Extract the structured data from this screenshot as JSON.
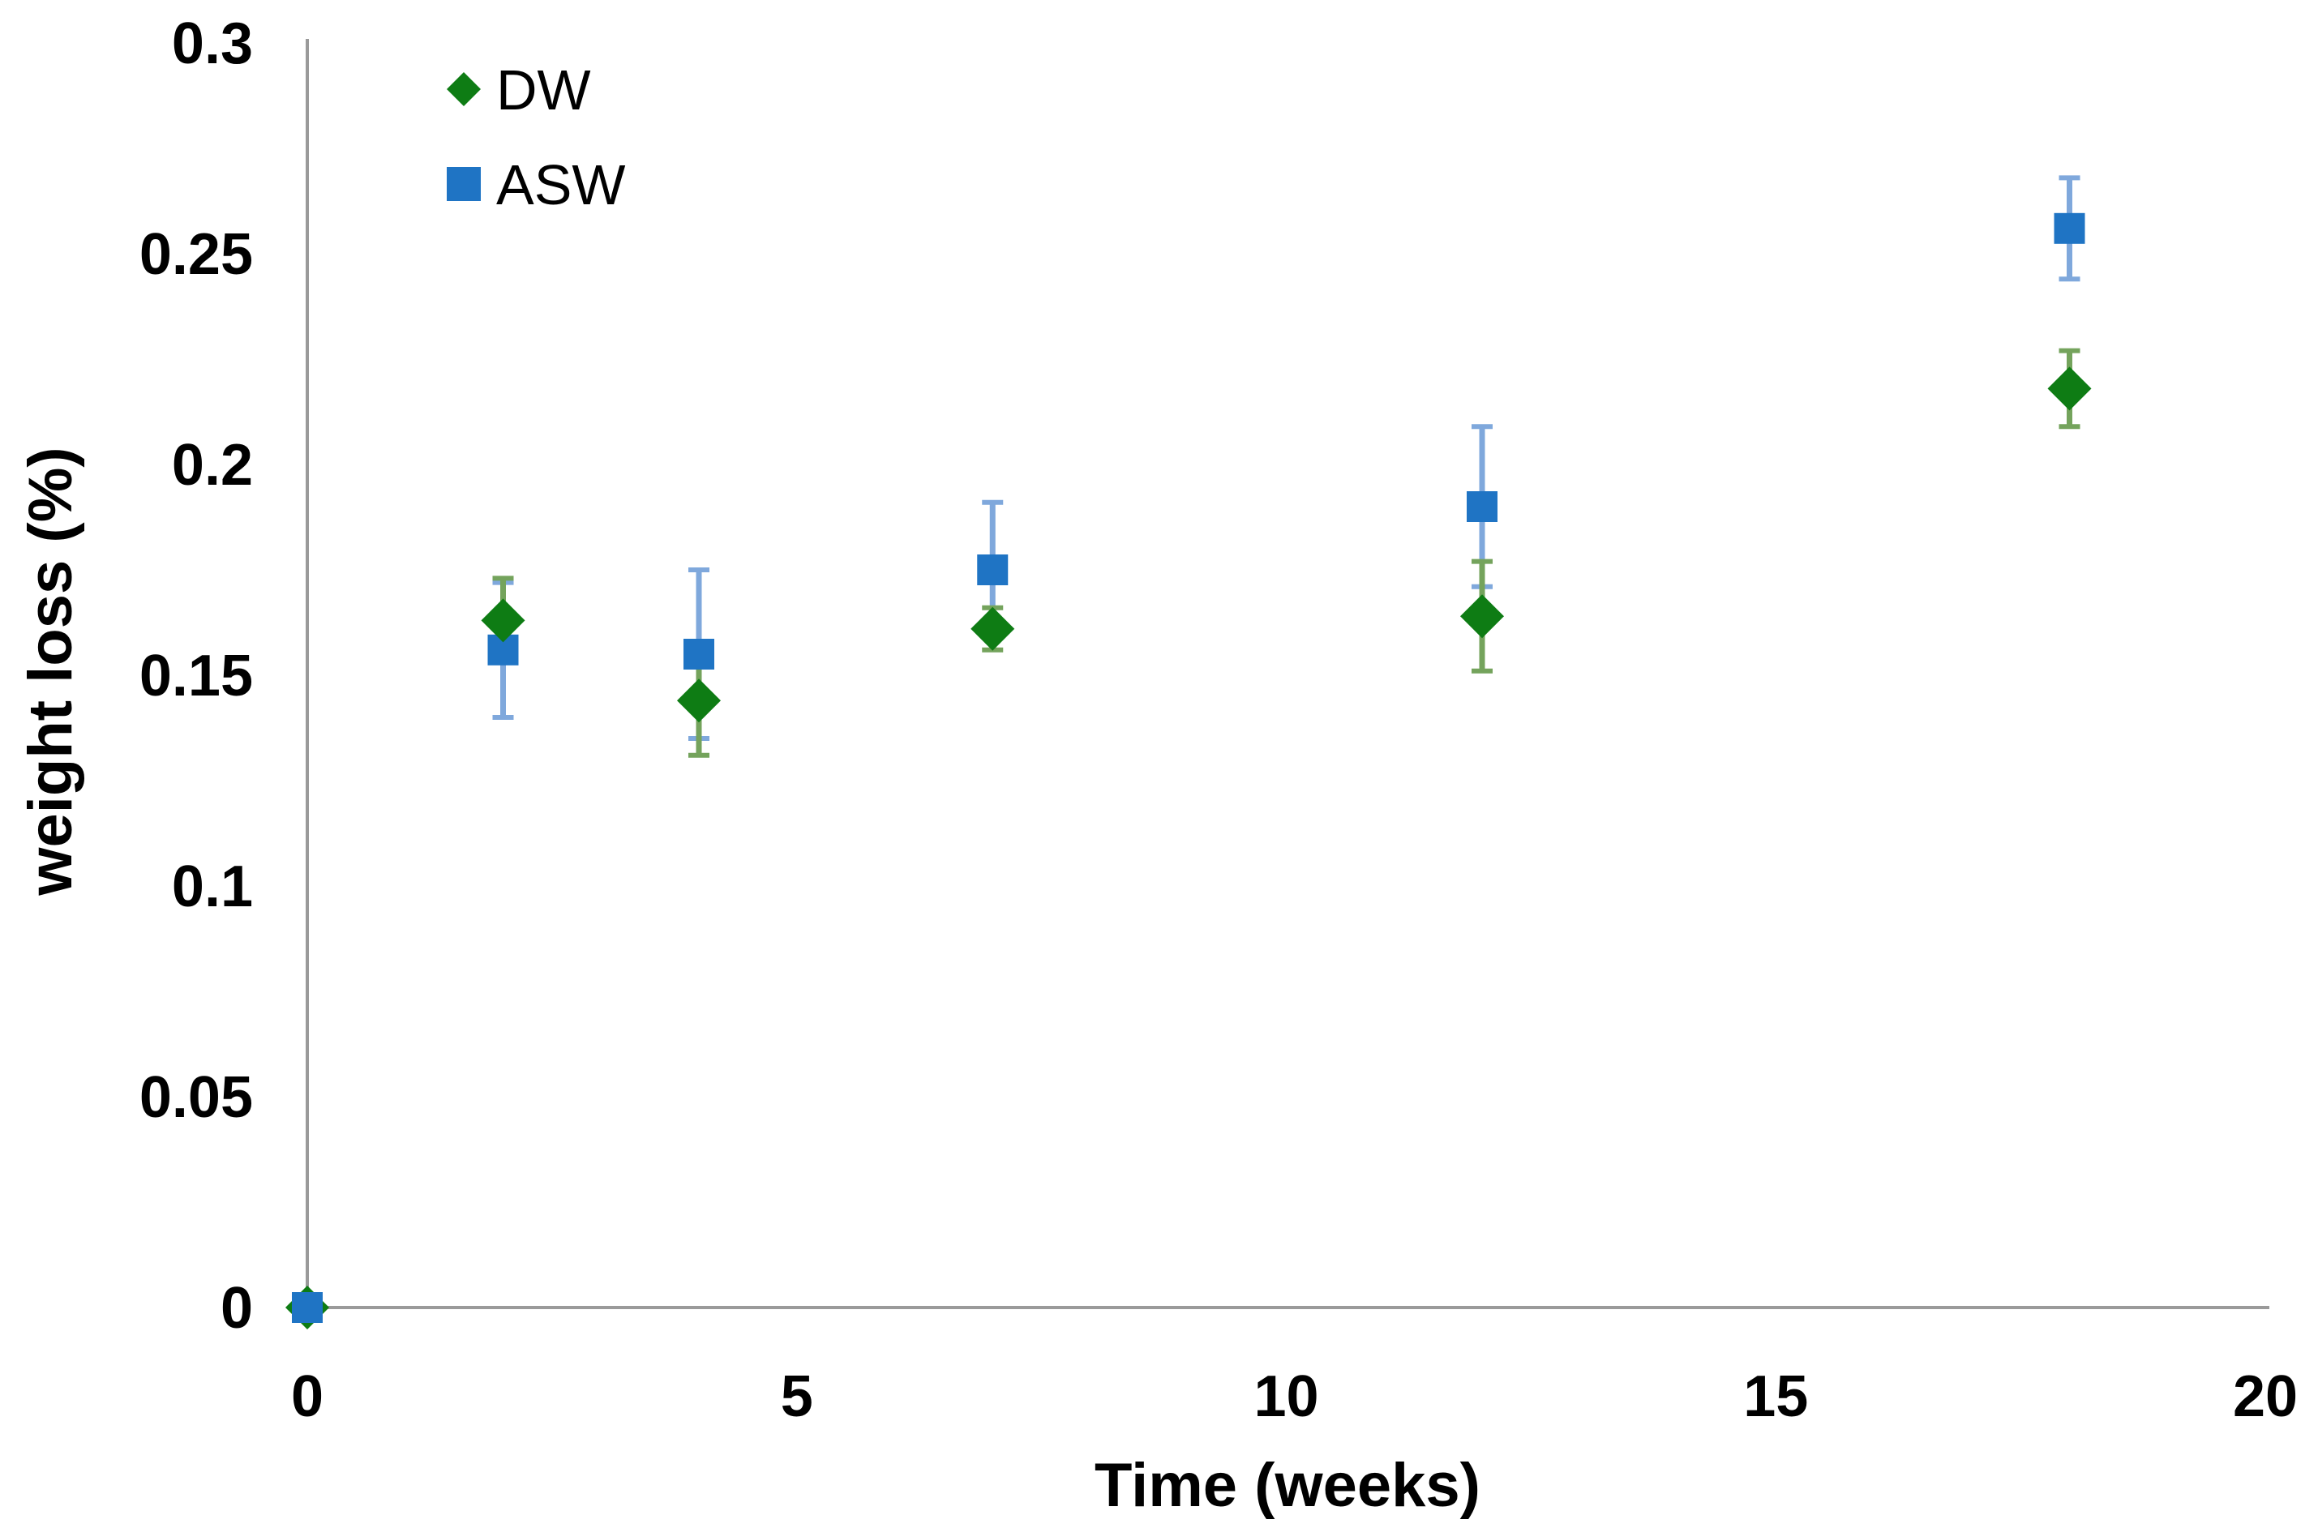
{
  "chart_data": {
    "type": "scatter",
    "title": "",
    "xlabel": "Time (weeks)",
    "ylabel": "weight loss  (%)",
    "xlim": [
      0,
      20
    ],
    "ylim": [
      0,
      0.3
    ],
    "x_ticks": [
      0,
      5,
      10,
      15,
      20
    ],
    "x_tick_labels": [
      "0",
      "5",
      "10",
      "15",
      "20"
    ],
    "y_ticks": [
      0,
      0.05,
      0.1,
      0.15,
      0.2,
      0.25,
      0.3
    ],
    "y_tick_labels": [
      "0",
      "0.05",
      "0.1",
      "0.15",
      "0.2",
      "0.25",
      "0.3"
    ],
    "grid": false,
    "legend_position": "top-left-inside",
    "error_bars": "vertical",
    "series": [
      {
        "name": "DW",
        "marker": "diamond",
        "color": "#0E7C14",
        "error_color": "#74A35C",
        "x": [
          0,
          2,
          4,
          7,
          12,
          18
        ],
        "y": [
          0,
          0.163,
          0.144,
          0.161,
          0.164,
          0.218
        ],
        "yerr": [
          0,
          0.01,
          0.013,
          0.005,
          0.013,
          0.009
        ]
      },
      {
        "name": "ASW",
        "marker": "square",
        "color": "#1F74C4",
        "error_color": "#7FA8DC",
        "x": [
          0,
          2,
          4,
          7,
          12,
          18
        ],
        "y": [
          0,
          0.156,
          0.155,
          0.175,
          0.19,
          0.256
        ],
        "yerr": [
          0,
          0.016,
          0.02,
          0.016,
          0.019,
          0.012
        ]
      }
    ],
    "axis_color": "#9A9A9A",
    "text_color": "#000000",
    "background_color": "#FFFFFF"
  }
}
